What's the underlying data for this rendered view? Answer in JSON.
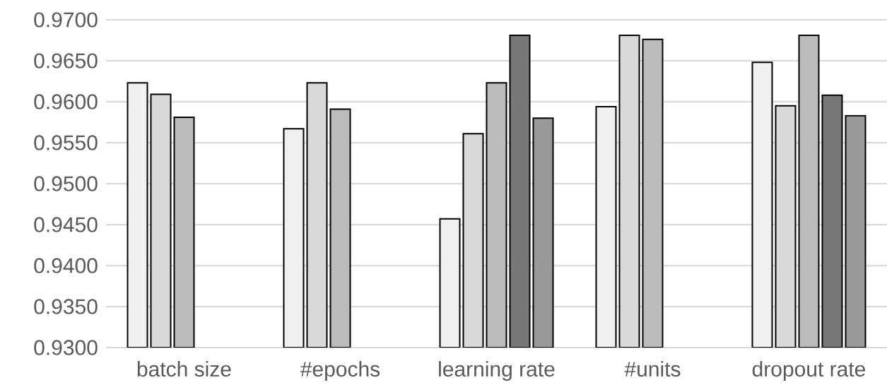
{
  "chart_data": {
    "type": "bar",
    "categories": [
      "batch size",
      "#epochs",
      "learning rate",
      "#units",
      "dropout rate"
    ],
    "series": [
      {
        "color": "#f0f0f0",
        "values": [
          0.9623,
          0.9567,
          0.9457,
          0.9594,
          0.9648
        ]
      },
      {
        "color": "#d9d9d9",
        "values": [
          0.9609,
          0.9623,
          0.9561,
          0.9681,
          0.9595
        ]
      },
      {
        "color": "#bbbbbb",
        "values": [
          0.9581,
          0.9591,
          0.9623,
          0.9676,
          0.9681
        ]
      },
      {
        "color": "#777777",
        "values": [
          null,
          null,
          0.9681,
          null,
          0.9608
        ]
      },
      {
        "color": "#999999",
        "values": [
          null,
          null,
          0.958,
          null,
          0.9583
        ]
      }
    ],
    "ylim": [
      0.93,
      0.97
    ],
    "yticks": [
      {
        "value": 0.93,
        "label": "0.9300"
      },
      {
        "value": 0.935,
        "label": "0.9350"
      },
      {
        "value": 0.94,
        "label": "0.9400"
      },
      {
        "value": 0.945,
        "label": "0.9450"
      },
      {
        "value": 0.95,
        "label": "0.9500"
      },
      {
        "value": 0.955,
        "label": "0.9550"
      },
      {
        "value": 0.96,
        "label": "0.9600"
      },
      {
        "value": 0.965,
        "label": "0.9650"
      },
      {
        "value": 0.97,
        "label": "0.9700"
      }
    ],
    "grid": "y"
  }
}
